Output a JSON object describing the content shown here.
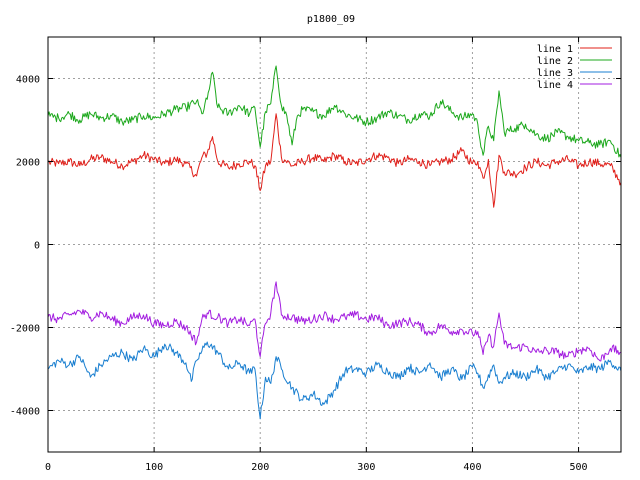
{
  "chart_data": {
    "type": "line",
    "title": "p1800_09",
    "xlabel": "",
    "ylabel": "",
    "xlim": [
      0,
      540
    ],
    "ylim": [
      -5000,
      5000
    ],
    "x_ticks": [
      0,
      100,
      200,
      300,
      400,
      500
    ],
    "y_ticks": [
      -4000,
      -2000,
      0,
      2000,
      4000
    ],
    "x_tick_labels": [
      "0",
      "100",
      "200",
      "300",
      "400",
      "500"
    ],
    "y_tick_labels": [
      "-4000",
      "-2000",
      "0",
      "2000",
      "4000"
    ],
    "grid": true,
    "legend_position": "top-right",
    "series": [
      {
        "name": "line 1",
        "color": "#e0201a",
        "anchors": [
          [
            0,
            1980
          ],
          [
            10,
            1950
          ],
          [
            20,
            2000
          ],
          [
            30,
            1900
          ],
          [
            40,
            2050
          ],
          [
            50,
            2100
          ],
          [
            60,
            2000
          ],
          [
            70,
            1900
          ],
          [
            80,
            2000
          ],
          [
            90,
            2150
          ],
          [
            100,
            2050
          ],
          [
            110,
            1950
          ],
          [
            120,
            2050
          ],
          [
            130,
            1950
          ],
          [
            140,
            1650
          ],
          [
            145,
            2100
          ],
          [
            150,
            2200
          ],
          [
            155,
            2600
          ],
          [
            160,
            2000
          ],
          [
            170,
            1850
          ],
          [
            180,
            1950
          ],
          [
            190,
            2000
          ],
          [
            195,
            1900
          ],
          [
            200,
            1300
          ],
          [
            205,
            1900
          ],
          [
            210,
            2000
          ],
          [
            215,
            3150
          ],
          [
            220,
            2100
          ],
          [
            230,
            1900
          ],
          [
            240,
            2000
          ],
          [
            250,
            2100
          ],
          [
            260,
            2000
          ],
          [
            270,
            2150
          ],
          [
            280,
            2000
          ],
          [
            290,
            1950
          ],
          [
            300,
            2050
          ],
          [
            310,
            2150
          ],
          [
            320,
            2100
          ],
          [
            330,
            1950
          ],
          [
            340,
            2050
          ],
          [
            350,
            2000
          ],
          [
            360,
            1900
          ],
          [
            370,
            2000
          ],
          [
            380,
            2050
          ],
          [
            390,
            2250
          ],
          [
            400,
            1950
          ],
          [
            405,
            2000
          ],
          [
            410,
            1600
          ],
          [
            415,
            2050
          ],
          [
            420,
            900
          ],
          [
            425,
            2150
          ],
          [
            430,
            1750
          ],
          [
            440,
            1700
          ],
          [
            450,
            1850
          ],
          [
            460,
            2000
          ],
          [
            470,
            1900
          ],
          [
            480,
            2000
          ],
          [
            490,
            2050
          ],
          [
            500,
            1900
          ],
          [
            510,
            2000
          ],
          [
            520,
            1950
          ],
          [
            530,
            1900
          ],
          [
            540,
            1500
          ]
        ]
      },
      {
        "name": "line 2",
        "color": "#1ca81c",
        "anchors": [
          [
            0,
            3100
          ],
          [
            10,
            3050
          ],
          [
            20,
            3150
          ],
          [
            30,
            3000
          ],
          [
            40,
            3150
          ],
          [
            50,
            3050
          ],
          [
            60,
            3100
          ],
          [
            70,
            2950
          ],
          [
            80,
            3000
          ],
          [
            90,
            3100
          ],
          [
            100,
            3050
          ],
          [
            110,
            3150
          ],
          [
            120,
            3250
          ],
          [
            130,
            3300
          ],
          [
            140,
            3450
          ],
          [
            145,
            3150
          ],
          [
            150,
            3500
          ],
          [
            155,
            4150
          ],
          [
            160,
            3300
          ],
          [
            170,
            3150
          ],
          [
            180,
            3350
          ],
          [
            190,
            3150
          ],
          [
            195,
            3300
          ],
          [
            200,
            2350
          ],
          [
            205,
            3200
          ],
          [
            210,
            3400
          ],
          [
            215,
            4300
          ],
          [
            220,
            3350
          ],
          [
            225,
            3100
          ],
          [
            230,
            2400
          ],
          [
            235,
            3100
          ],
          [
            240,
            3250
          ],
          [
            250,
            3200
          ],
          [
            260,
            3100
          ],
          [
            270,
            3350
          ],
          [
            280,
            3150
          ],
          [
            290,
            3050
          ],
          [
            300,
            2950
          ],
          [
            310,
            3050
          ],
          [
            320,
            3200
          ],
          [
            330,
            3100
          ],
          [
            340,
            3000
          ],
          [
            350,
            3150
          ],
          [
            360,
            3100
          ],
          [
            370,
            3450
          ],
          [
            380,
            3200
          ],
          [
            390,
            3050
          ],
          [
            400,
            3150
          ],
          [
            405,
            2900
          ],
          [
            410,
            2150
          ],
          [
            415,
            2850
          ],
          [
            420,
            2500
          ],
          [
            425,
            3700
          ],
          [
            430,
            2700
          ],
          [
            440,
            2800
          ],
          [
            450,
            2900
          ],
          [
            460,
            2650
          ],
          [
            470,
            2550
          ],
          [
            480,
            2700
          ],
          [
            490,
            2600
          ],
          [
            500,
            2500
          ],
          [
            510,
            2450
          ],
          [
            520,
            2400
          ],
          [
            530,
            2500
          ],
          [
            540,
            2100
          ]
        ]
      },
      {
        "name": "line 3",
        "color": "#1a7fd0",
        "anchors": [
          [
            0,
            -3000
          ],
          [
            10,
            -2800
          ],
          [
            20,
            -2900
          ],
          [
            30,
            -2700
          ],
          [
            40,
            -3200
          ],
          [
            50,
            -2900
          ],
          [
            60,
            -2700
          ],
          [
            70,
            -2600
          ],
          [
            80,
            -2800
          ],
          [
            90,
            -2500
          ],
          [
            100,
            -2700
          ],
          [
            110,
            -2400
          ],
          [
            120,
            -2600
          ],
          [
            130,
            -2850
          ],
          [
            135,
            -3300
          ],
          [
            140,
            -2800
          ],
          [
            150,
            -2350
          ],
          [
            160,
            -2600
          ],
          [
            170,
            -3000
          ],
          [
            180,
            -2850
          ],
          [
            190,
            -3100
          ],
          [
            195,
            -3000
          ],
          [
            200,
            -4200
          ],
          [
            205,
            -3200
          ],
          [
            210,
            -3350
          ],
          [
            215,
            -2700
          ],
          [
            220,
            -3000
          ],
          [
            230,
            -3450
          ],
          [
            240,
            -3750
          ],
          [
            250,
            -3600
          ],
          [
            260,
            -3850
          ],
          [
            270,
            -3500
          ],
          [
            280,
            -3050
          ],
          [
            290,
            -3000
          ],
          [
            300,
            -3100
          ],
          [
            310,
            -2900
          ],
          [
            320,
            -3050
          ],
          [
            330,
            -3200
          ],
          [
            340,
            -2950
          ],
          [
            350,
            -3100
          ],
          [
            360,
            -2850
          ],
          [
            370,
            -3200
          ],
          [
            380,
            -3000
          ],
          [
            390,
            -3250
          ],
          [
            400,
            -2950
          ],
          [
            405,
            -3100
          ],
          [
            410,
            -3450
          ],
          [
            420,
            -2900
          ],
          [
            425,
            -3350
          ],
          [
            430,
            -3200
          ],
          [
            440,
            -3100
          ],
          [
            450,
            -3200
          ],
          [
            460,
            -3000
          ],
          [
            470,
            -3200
          ],
          [
            480,
            -3050
          ],
          [
            490,
            -2900
          ],
          [
            500,
            -3100
          ],
          [
            510,
            -2950
          ],
          [
            520,
            -3000
          ],
          [
            530,
            -2800
          ],
          [
            540,
            -3050
          ]
        ]
      },
      {
        "name": "line 4",
        "color": "#a31ee0",
        "anchors": [
          [
            0,
            -1750
          ],
          [
            10,
            -1800
          ],
          [
            20,
            -1700
          ],
          [
            30,
            -1600
          ],
          [
            40,
            -1750
          ],
          [
            50,
            -1650
          ],
          [
            60,
            -1800
          ],
          [
            70,
            -1900
          ],
          [
            80,
            -1750
          ],
          [
            90,
            -1700
          ],
          [
            100,
            -1900
          ],
          [
            110,
            -1950
          ],
          [
            120,
            -1850
          ],
          [
            130,
            -2000
          ],
          [
            140,
            -2350
          ],
          [
            145,
            -1800
          ],
          [
            150,
            -1650
          ],
          [
            160,
            -1750
          ],
          [
            170,
            -1900
          ],
          [
            180,
            -1800
          ],
          [
            190,
            -1950
          ],
          [
            195,
            -1800
          ],
          [
            200,
            -2700
          ],
          [
            205,
            -1900
          ],
          [
            210,
            -1650
          ],
          [
            215,
            -900
          ],
          [
            220,
            -1700
          ],
          [
            230,
            -1750
          ],
          [
            240,
            -1850
          ],
          [
            250,
            -1800
          ],
          [
            260,
            -1700
          ],
          [
            270,
            -1800
          ],
          [
            280,
            -1750
          ],
          [
            290,
            -1700
          ],
          [
            300,
            -1800
          ],
          [
            310,
            -1750
          ],
          [
            320,
            -1950
          ],
          [
            330,
            -1900
          ],
          [
            340,
            -1850
          ],
          [
            350,
            -1950
          ],
          [
            360,
            -2150
          ],
          [
            370,
            -1950
          ],
          [
            380,
            -2100
          ],
          [
            390,
            -2050
          ],
          [
            400,
            -2150
          ],
          [
            405,
            -2100
          ],
          [
            410,
            -2650
          ],
          [
            415,
            -2200
          ],
          [
            420,
            -2450
          ],
          [
            425,
            -1650
          ],
          [
            430,
            -2400
          ],
          [
            440,
            -2500
          ],
          [
            450,
            -2450
          ],
          [
            460,
            -2600
          ],
          [
            470,
            -2550
          ],
          [
            480,
            -2600
          ],
          [
            490,
            -2700
          ],
          [
            500,
            -2550
          ],
          [
            510,
            -2500
          ],
          [
            520,
            -2800
          ],
          [
            530,
            -2500
          ],
          [
            540,
            -2600
          ]
        ]
      }
    ]
  }
}
